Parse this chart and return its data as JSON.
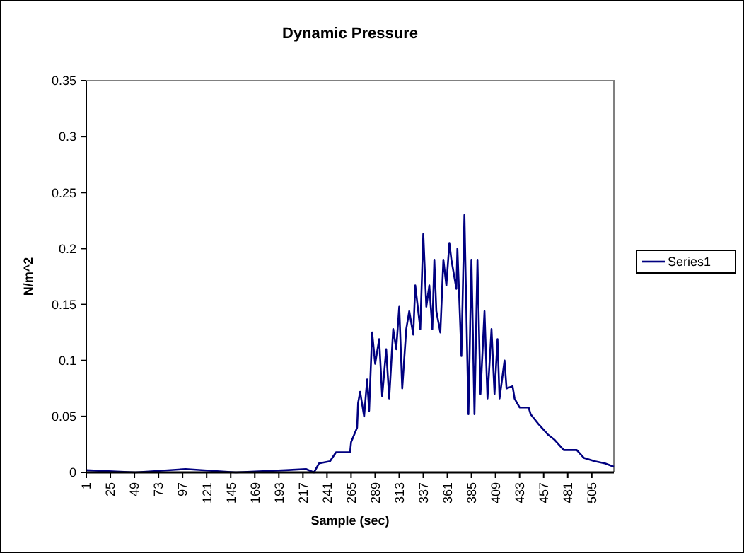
{
  "chart_data": {
    "type": "line",
    "title": "Dynamic Pressure",
    "xlabel": "Sample (sec)",
    "ylabel": "N/m^2",
    "xlim": [
      1,
      527
    ],
    "xticks": [
      1,
      25,
      49,
      73,
      97,
      121,
      145,
      169,
      193,
      217,
      241,
      265,
      289,
      313,
      337,
      361,
      385,
      409,
      433,
      457,
      481,
      505
    ],
    "ylim": [
      0,
      0.35
    ],
    "yticks": [
      0,
      0.05,
      0.1,
      0.15,
      0.2,
      0.25,
      0.3,
      0.35
    ],
    "legend": "right",
    "grid": false,
    "marker": "none",
    "line_style": "solid",
    "series": [
      {
        "name": "Series1",
        "color": "#000080",
        "x": [
          1,
          50,
          100,
          150,
          200,
          220,
          228,
          233,
          244,
          250,
          264,
          265,
          271,
          272,
          274,
          278,
          281,
          283,
          286,
          289,
          293,
          296,
          300,
          303,
          307,
          310,
          313,
          316,
          320,
          323,
          327,
          329,
          334,
          337,
          340,
          343,
          346,
          348,
          350,
          354,
          357,
          360,
          363,
          365,
          370,
          371,
          375,
          378,
          382,
          385,
          388,
          391,
          394,
          398,
          401,
          405,
          408,
          411,
          413,
          418,
          420,
          426,
          428,
          433,
          442,
          444,
          452,
          461,
          468,
          477,
          490,
          497,
          508,
          518,
          527
        ],
        "values": [
          0.002,
          0,
          0.003,
          0,
          0.002,
          0.003,
          0,
          0.008,
          0.01,
          0.018,
          0.018,
          0.027,
          0.04,
          0.062,
          0.072,
          0.05,
          0.083,
          0.055,
          0.125,
          0.097,
          0.119,
          0.068,
          0.11,
          0.066,
          0.128,
          0.11,
          0.148,
          0.075,
          0.128,
          0.144,
          0.123,
          0.167,
          0.128,
          0.213,
          0.148,
          0.167,
          0.128,
          0.19,
          0.144,
          0.125,
          0.19,
          0.167,
          0.205,
          0.19,
          0.164,
          0.2,
          0.104,
          0.23,
          0.052,
          0.19,
          0.052,
          0.19,
          0.07,
          0.144,
          0.066,
          0.128,
          0.07,
          0.119,
          0.066,
          0.1,
          0.075,
          0.077,
          0.066,
          0.058,
          0.058,
          0.052,
          0.043,
          0.034,
          0.029,
          0.02,
          0.02,
          0.013,
          0.01,
          0.008,
          0.005
        ]
      }
    ]
  }
}
